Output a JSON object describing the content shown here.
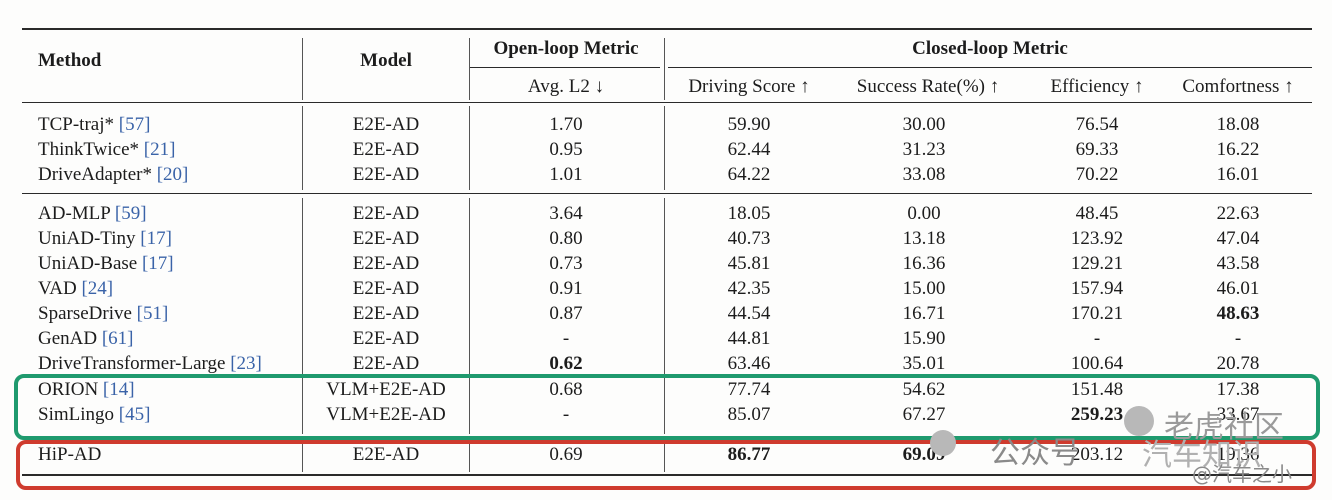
{
  "header": {
    "method": "Method",
    "model": "Model",
    "open_loop": "Open-loop Metric",
    "closed_loop": "Closed-loop Metric",
    "avg_l2": "Avg. L2 ↓",
    "driving_score": "Driving Score ↑",
    "success_rate": "Success Rate(%) ↑",
    "efficiency": "Efficiency ↑",
    "comfortness": "Comfortness ↑"
  },
  "rows": [
    {
      "name": "TCP-traj*",
      "ref": "[57]",
      "model": "E2E-AD",
      "l2": "1.70",
      "ds": "59.90",
      "sr": "30.00",
      "eff": "76.54",
      "comf": "18.08"
    },
    {
      "name": "ThinkTwice*",
      "ref": "[21]",
      "model": "E2E-AD",
      "l2": "0.95",
      "ds": "62.44",
      "sr": "31.23",
      "eff": "69.33",
      "comf": "16.22"
    },
    {
      "name": "DriveAdapter*",
      "ref": "[20]",
      "model": "E2E-AD",
      "l2": "1.01",
      "ds": "64.22",
      "sr": "33.08",
      "eff": "70.22",
      "comf": "16.01"
    },
    {
      "name": "AD-MLP",
      "ref": "[59]",
      "model": "E2E-AD",
      "l2": "3.64",
      "ds": "18.05",
      "sr": "0.00",
      "eff": "48.45",
      "comf": "22.63"
    },
    {
      "name": "UniAD-Tiny",
      "ref": "[17]",
      "model": "E2E-AD",
      "l2": "0.80",
      "ds": "40.73",
      "sr": "13.18",
      "eff": "123.92",
      "comf": "47.04"
    },
    {
      "name": "UniAD-Base",
      "ref": "[17]",
      "model": "E2E-AD",
      "l2": "0.73",
      "ds": "45.81",
      "sr": "16.36",
      "eff": "129.21",
      "comf": "43.58"
    },
    {
      "name": "VAD",
      "ref": "[24]",
      "model": "E2E-AD",
      "l2": "0.91",
      "ds": "42.35",
      "sr": "15.00",
      "eff": "157.94",
      "comf": "46.01"
    },
    {
      "name": "SparseDrive",
      "ref": "[51]",
      "model": "E2E-AD",
      "l2": "0.87",
      "ds": "44.54",
      "sr": "16.71",
      "eff": "170.21",
      "comf": "48.63"
    },
    {
      "name": "GenAD",
      "ref": "[61]",
      "model": "E2E-AD",
      "l2": "-",
      "ds": "44.81",
      "sr": "15.90",
      "eff": "-",
      "comf": "-"
    },
    {
      "name": "DriveTransformer-Large",
      "ref": "[23]",
      "model": "E2E-AD",
      "l2": "0.62",
      "ds": "63.46",
      "sr": "35.01",
      "eff": "100.64",
      "comf": "20.78"
    },
    {
      "name": "ORION",
      "ref": "[14]",
      "model": "VLM+E2E-AD",
      "l2": "0.68",
      "ds": "77.74",
      "sr": "54.62",
      "eff": "151.48",
      "comf": "17.38"
    },
    {
      "name": "SimLingo",
      "ref": "[45]",
      "model": "VLM+E2E-AD",
      "l2": "-",
      "ds": "85.07",
      "sr": "67.27",
      "eff": "259.23",
      "comf": "33.67"
    },
    {
      "name": "HiP-AD",
      "ref": "",
      "model": "E2E-AD",
      "l2": "0.69",
      "ds": "86.77",
      "sr": "69.09",
      "eff": "203.12",
      "comf": "19.36"
    }
  ],
  "watermark": {
    "line1": "老虎社区",
    "line2a": "公众号",
    "line2b": "汽车知识",
    "line3": "@汽车之小"
  },
  "colors": {
    "green_box": "#1f9a6e",
    "red_box": "#cf3b2e",
    "ref_blue": "#3a63a8"
  }
}
